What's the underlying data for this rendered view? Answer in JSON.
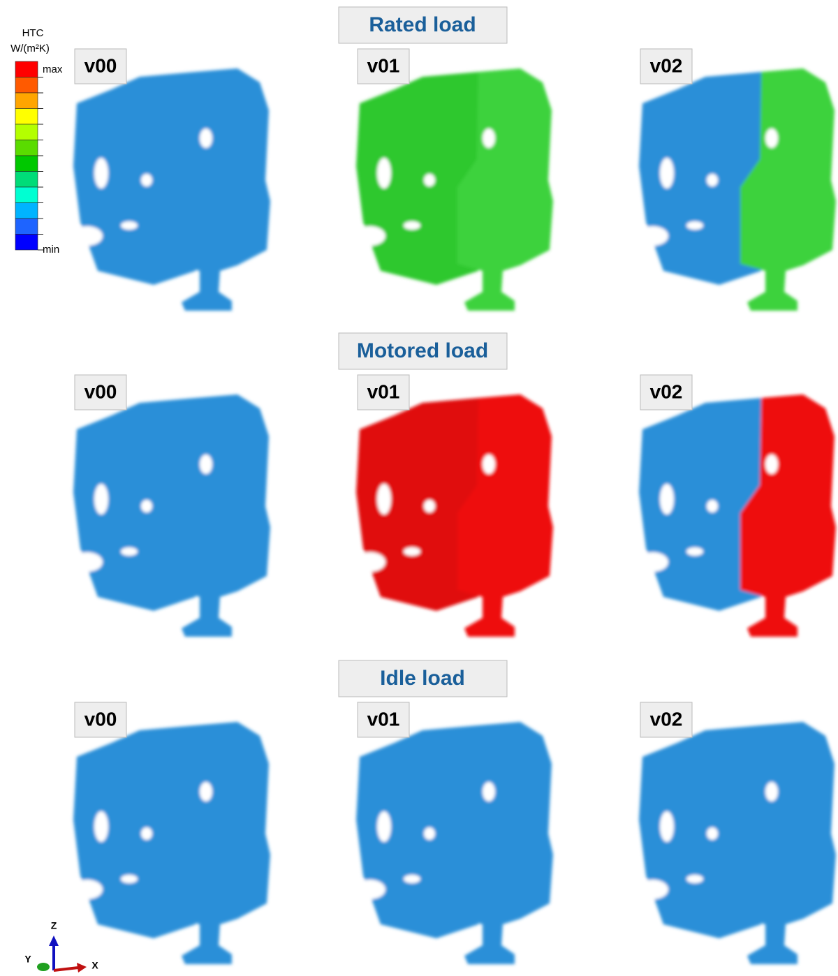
{
  "legend": {
    "title": "HTC",
    "unit": "W/(m²K)",
    "max": "max",
    "min": "min",
    "colors": [
      "#ff0000",
      "#ff5a00",
      "#ffa500",
      "#ffff00",
      "#b4ff00",
      "#5adc00",
      "#00c800",
      "#00dc78",
      "#00ffd2",
      "#00b4ff",
      "#1e64ff",
      "#0000ff"
    ]
  },
  "rows": [
    {
      "title": "Rated load",
      "panels": [
        {
          "label": "v00",
          "left": "#2a8fd8",
          "right": "#2a8fd8"
        },
        {
          "label": "v01",
          "left": "#2ec82e",
          "right": "#3cd23c"
        },
        {
          "label": "v02",
          "left": "#2a8fd8",
          "right": "#3cd23c"
        }
      ]
    },
    {
      "title": "Motored load",
      "panels": [
        {
          "label": "v00",
          "left": "#2a8fd8",
          "right": "#2a8fd8"
        },
        {
          "label": "v01",
          "left": "#e01010",
          "right": "#ee1010"
        },
        {
          "label": "v02",
          "left": "#2a8fd8",
          "right": "#ee1010"
        }
      ]
    },
    {
      "title": "Idle load",
      "panels": [
        {
          "label": "v00",
          "left": "#2a8fd8",
          "right": "#2a8fd8"
        },
        {
          "label": "v01",
          "left": "#2a8fd8",
          "right": "#2a8fd8"
        },
        {
          "label": "v02",
          "left": "#2a8fd8",
          "right": "#2a8fd8"
        }
      ]
    }
  ],
  "axes": {
    "z": "Z",
    "y": "Y",
    "x": "X"
  }
}
